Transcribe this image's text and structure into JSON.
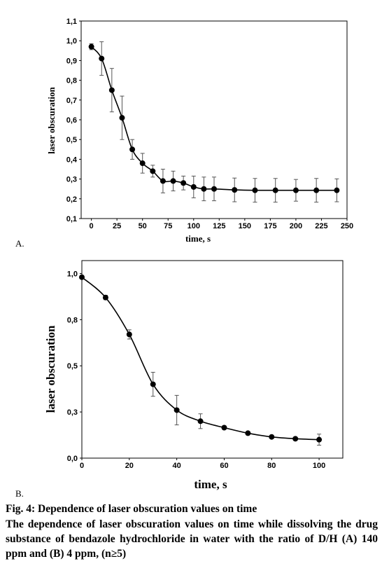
{
  "panel_labels": {
    "a": "A.",
    "b": "B."
  },
  "caption": {
    "title": "Fig. 4: Dependence of laser obscuration values on time",
    "body": "The dependence of laser obscuration values on time while dissolving the drug substance of bendazole hydrochloride in water with the ratio of D/H (A) 140 ppm and (B) 4 ppm, (n≥5)"
  },
  "chart_data": [
    {
      "id": "A",
      "type": "line",
      "xlabel": "time,  s",
      "ylabel": "laser obscuration",
      "xlim": [
        -10,
        250
      ],
      "ylim": [
        0.1,
        1.1
      ],
      "xticks": [
        0,
        25,
        50,
        75,
        100,
        125,
        150,
        175,
        200,
        225,
        250
      ],
      "xtick_labels": [
        "0",
        "25",
        "50",
        "75",
        "100",
        "125",
        "150",
        "175",
        "200",
        "225",
        "250"
      ],
      "yticks": [
        0.1,
        0.2,
        0.3,
        0.4,
        0.5,
        0.6,
        0.7,
        0.8,
        0.9,
        1.0,
        1.1
      ],
      "ytick_labels": [
        "0,1",
        "0,2",
        "0,3",
        "0,4",
        "0,5",
        "0,6",
        "0,7",
        "0,8",
        "0,9",
        "1,0",
        "1,1"
      ],
      "grid": false,
      "marker": "circle",
      "color": "#000000",
      "x": [
        0,
        10,
        20,
        30,
        40,
        50,
        60,
        70,
        80,
        90,
        100,
        110,
        120,
        140,
        160,
        180,
        200,
        220,
        240
      ],
      "y": [
        0.97,
        0.91,
        0.75,
        0.61,
        0.45,
        0.38,
        0.34,
        0.29,
        0.29,
        0.28,
        0.26,
        0.25,
        0.25,
        0.245,
        0.243,
        0.243,
        0.243,
        0.243,
        0.243
      ],
      "error": [
        0.015,
        0.085,
        0.11,
        0.11,
        0.05,
        0.05,
        0.03,
        0.06,
        0.05,
        0.035,
        0.055,
        0.06,
        0.06,
        0.06,
        0.06,
        0.06,
        0.055,
        0.06,
        0.058
      ]
    },
    {
      "id": "B",
      "type": "line",
      "xlabel": "time, s",
      "ylabel": "laser obscuration",
      "xlim": [
        0,
        110
      ],
      "ylim": [
        0,
        1.07
      ],
      "xticks": [
        0,
        20,
        40,
        60,
        80,
        100
      ],
      "xtick_labels": [
        "0",
        "20",
        "40",
        "60",
        "80",
        "100"
      ],
      "yticks": [
        0,
        0.25,
        0.5,
        0.75,
        1.0
      ],
      "ytick_labels": [
        "0,0",
        "0,3",
        "0,5",
        "0,8",
        "1,0"
      ],
      "grid": false,
      "marker": "circle",
      "color": "#000000",
      "x": [
        0,
        10,
        20,
        30,
        40,
        50,
        60,
        70,
        80,
        90,
        100
      ],
      "y": [
        0.98,
        0.87,
        0.67,
        0.4,
        0.26,
        0.2,
        0.165,
        0.135,
        0.115,
        0.105,
        0.1
      ],
      "error": [
        0.005,
        0.012,
        0.025,
        0.065,
        0.08,
        0.04,
        0.005,
        0.008,
        0.005,
        0.005,
        0.03
      ]
    }
  ]
}
